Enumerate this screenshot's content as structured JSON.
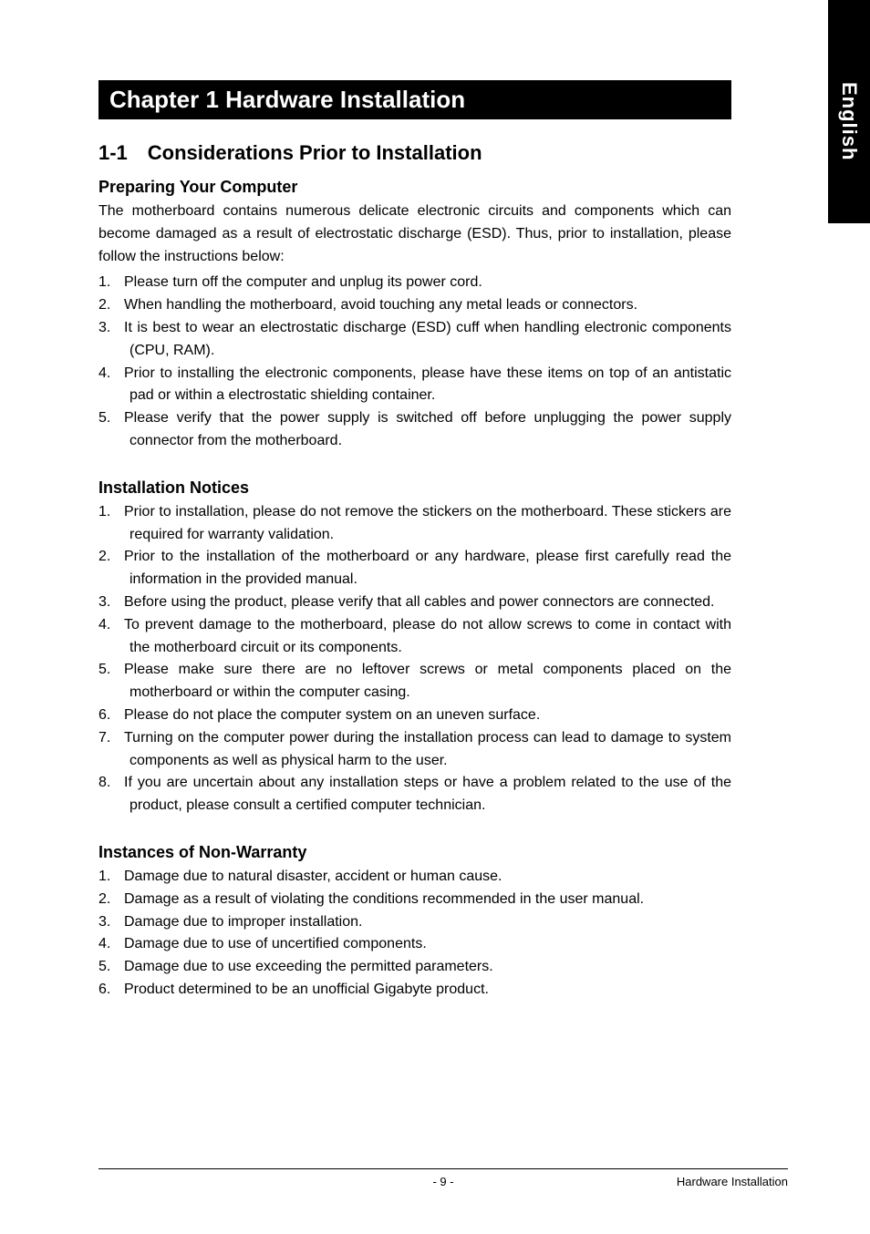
{
  "sideTab": "English",
  "chapterHeading": "Chapter 1 Hardware Installation",
  "sectionHeading": "1-1 Considerations Prior to Installation",
  "sub1": {
    "heading": "Preparing Your Computer",
    "para": "The motherboard contains numerous delicate electronic circuits and components which can become damaged as a result of electrostatic discharge (ESD).  Thus, prior to installation, please follow the instructions below:",
    "items": [
      "Please turn off the computer and unplug its power cord.",
      "When handling the motherboard, avoid touching any metal leads or connectors.",
      "It is best to wear an electrostatic discharge (ESD) cuff when handling electronic components (CPU, RAM).",
      "Prior to installing the electronic components, please have these items on top of an antistatic pad or within a electrostatic shielding container.",
      "Please verify that the power supply is switched off before unplugging the power supply connector from the motherboard."
    ]
  },
  "sub2": {
    "heading": "Installation Notices",
    "items": [
      "Prior to installation, please do not remove the stickers on the motherboard.  These stickers are required for warranty validation.",
      "Prior to the installation of the motherboard or any hardware, please first carefully read the information in the provided manual.",
      "Before using the product, please verify that all cables and power connectors are connected.",
      "To prevent damage to the motherboard, please do not allow screws to come in contact with the motherboard circuit or its components.",
      "Please make sure there are no leftover screws or metal components placed on the motherboard or within the computer casing.",
      "Please do not place the computer system on an uneven surface.",
      "Turning on the computer power during the installation process can lead to damage to system components as well as physical harm to the user.",
      "If you are uncertain about any installation steps or have a problem related to the use of the product, please consult a certified computer technician."
    ]
  },
  "sub3": {
    "heading": "Instances of Non-Warranty",
    "items": [
      "Damage due to natural disaster, accident or human cause.",
      "Damage as a result of violating the conditions recommended in the user manual.",
      "Damage due to improper installation.",
      "Damage due to use of uncertified components.",
      "Damage due to use exceeding the permitted parameters.",
      "Product determined to be an unofficial Gigabyte product."
    ]
  },
  "footer": {
    "pageNum": "- 9 -",
    "sectionName": "Hardware Installation"
  },
  "colors": {
    "bg": "#ffffff",
    "text": "#000000",
    "inverseBg": "#000000",
    "inverseText": "#ffffff"
  },
  "typography": {
    "chapter_fontsize": 26,
    "section_fontsize": 22,
    "subsection_fontsize": 18,
    "body_fontsize": 16,
    "footer_fontsize": 13,
    "font_family": "Arial, Helvetica, sans-serif"
  }
}
